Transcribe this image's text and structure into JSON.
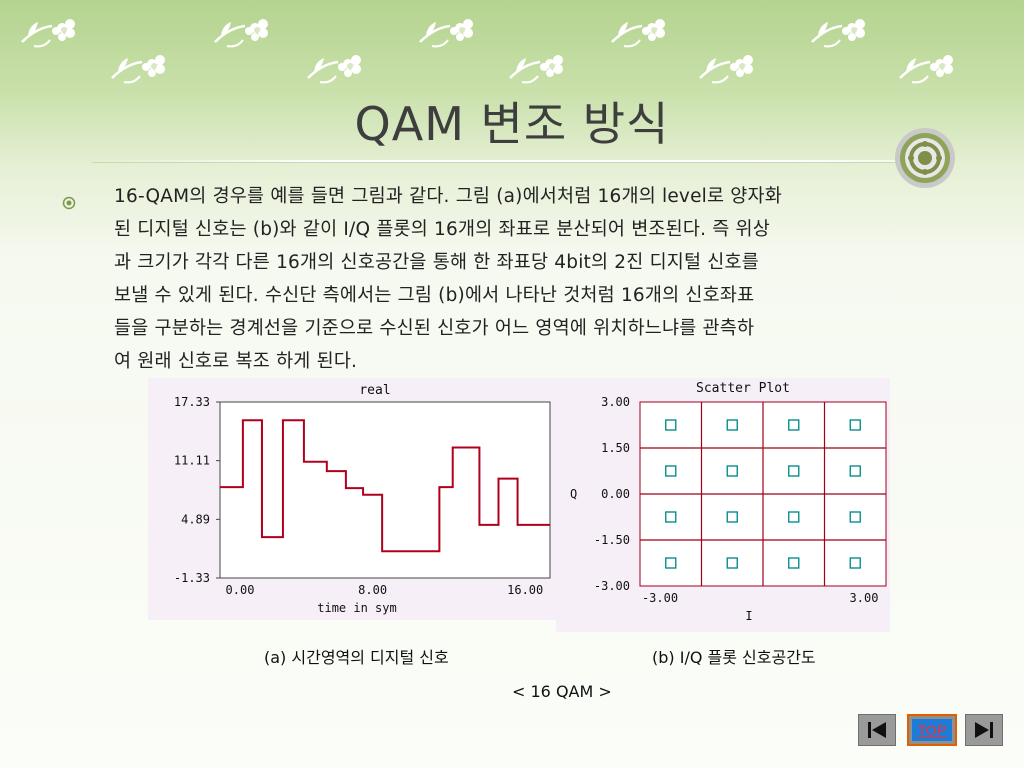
{
  "slide": {
    "title": "QAM 변조 방식",
    "body_lines": [
      "16-QAM의 경우를 예를 들면 그림과 같다. 그림 (a)에서처럼 16개의 level로 양자화",
      "된 디지털 신호는 (b)와 같이 I/Q 플롯의 16개의 좌표로 분산되어 변조된다. 즉 위상",
      "과 크기가 각각 다른 16개의 신호공간을 통해 한 좌표당 4bit의 2진 디지털 신호를",
      "보낼 수 있게 된다. 수신단 측에서는 그림 (b)에서 나타난 것처럼 16개의 신호좌표",
      "들을 구분하는 경계선을 기준으로 수신된 신호가 어느 영역에 위치하느냐를 관측하",
      "여 원래 신호로 복조 하게 된다."
    ],
    "caption_a": "(a)  시간영역의 디지털 신호",
    "caption_b": "(b) I/Q  플롯  신호공간도",
    "figure_caption": "<  16 QAM  >",
    "nav": {
      "top_label": "TOP"
    },
    "colors": {
      "trace": "#b0001e",
      "grid": "#a00018",
      "point": "#0a8f8f",
      "panel": "#f7eff8",
      "title": "#3e3e3e"
    },
    "icons": [
      "leaf-flower-decoration",
      "medal-icon",
      "bullet-icon",
      "first-page-icon",
      "last-page-icon"
    ]
  },
  "chart_data": [
    {
      "type": "line",
      "title": "real",
      "xlabel": "time in sym",
      "ylabel": "",
      "xlim": [
        0,
        17.3
      ],
      "ylim": [
        -1.33,
        17.33
      ],
      "x_ticks": [
        "0.00",
        "8.00",
        "16.00"
      ],
      "y_ticks": [
        "17.33",
        "11.11",
        "4.89",
        "-1.33"
      ],
      "step": true,
      "x": [
        0,
        1.2,
        2.2,
        3.3,
        4.4,
        5.6,
        6.6,
        7.5,
        8.5,
        9.5,
        11.5,
        12.2,
        13.6,
        14.6,
        15.6,
        16.6,
        17.3
      ],
      "y": [
        8.3,
        15.4,
        3.0,
        15.4,
        11.0,
        10.0,
        8.2,
        7.5,
        1.5,
        1.5,
        8.3,
        12.5,
        4.3,
        9.2,
        4.3,
        4.3,
        4.3
      ]
    },
    {
      "type": "scatter",
      "title": "Scatter Plot",
      "xlabel": "I",
      "ylabel": "Q",
      "xlim": [
        -3.0,
        3.0
      ],
      "ylim": [
        -3.0,
        3.0
      ],
      "x_ticks": [
        "-3.00",
        "3.00"
      ],
      "y_ticks": [
        "3.00",
        "1.50",
        "0.00",
        "-1.50",
        "-3.00"
      ],
      "grid_x": [
        -1.5,
        0,
        1.5
      ],
      "grid_y": [
        -1.5,
        0,
        1.5
      ],
      "points": [
        [
          -2.25,
          2.25
        ],
        [
          -0.75,
          2.25
        ],
        [
          0.75,
          2.25
        ],
        [
          2.25,
          2.25
        ],
        [
          -2.25,
          0.75
        ],
        [
          -0.75,
          0.75
        ],
        [
          0.75,
          0.75
        ],
        [
          2.25,
          0.75
        ],
        [
          -2.25,
          -0.75
        ],
        [
          -0.75,
          -0.75
        ],
        [
          0.75,
          -0.75
        ],
        [
          2.25,
          -0.75
        ],
        [
          -2.25,
          -2.25
        ],
        [
          -0.75,
          -2.25
        ],
        [
          0.75,
          -2.25
        ],
        [
          2.25,
          -2.25
        ]
      ]
    }
  ]
}
